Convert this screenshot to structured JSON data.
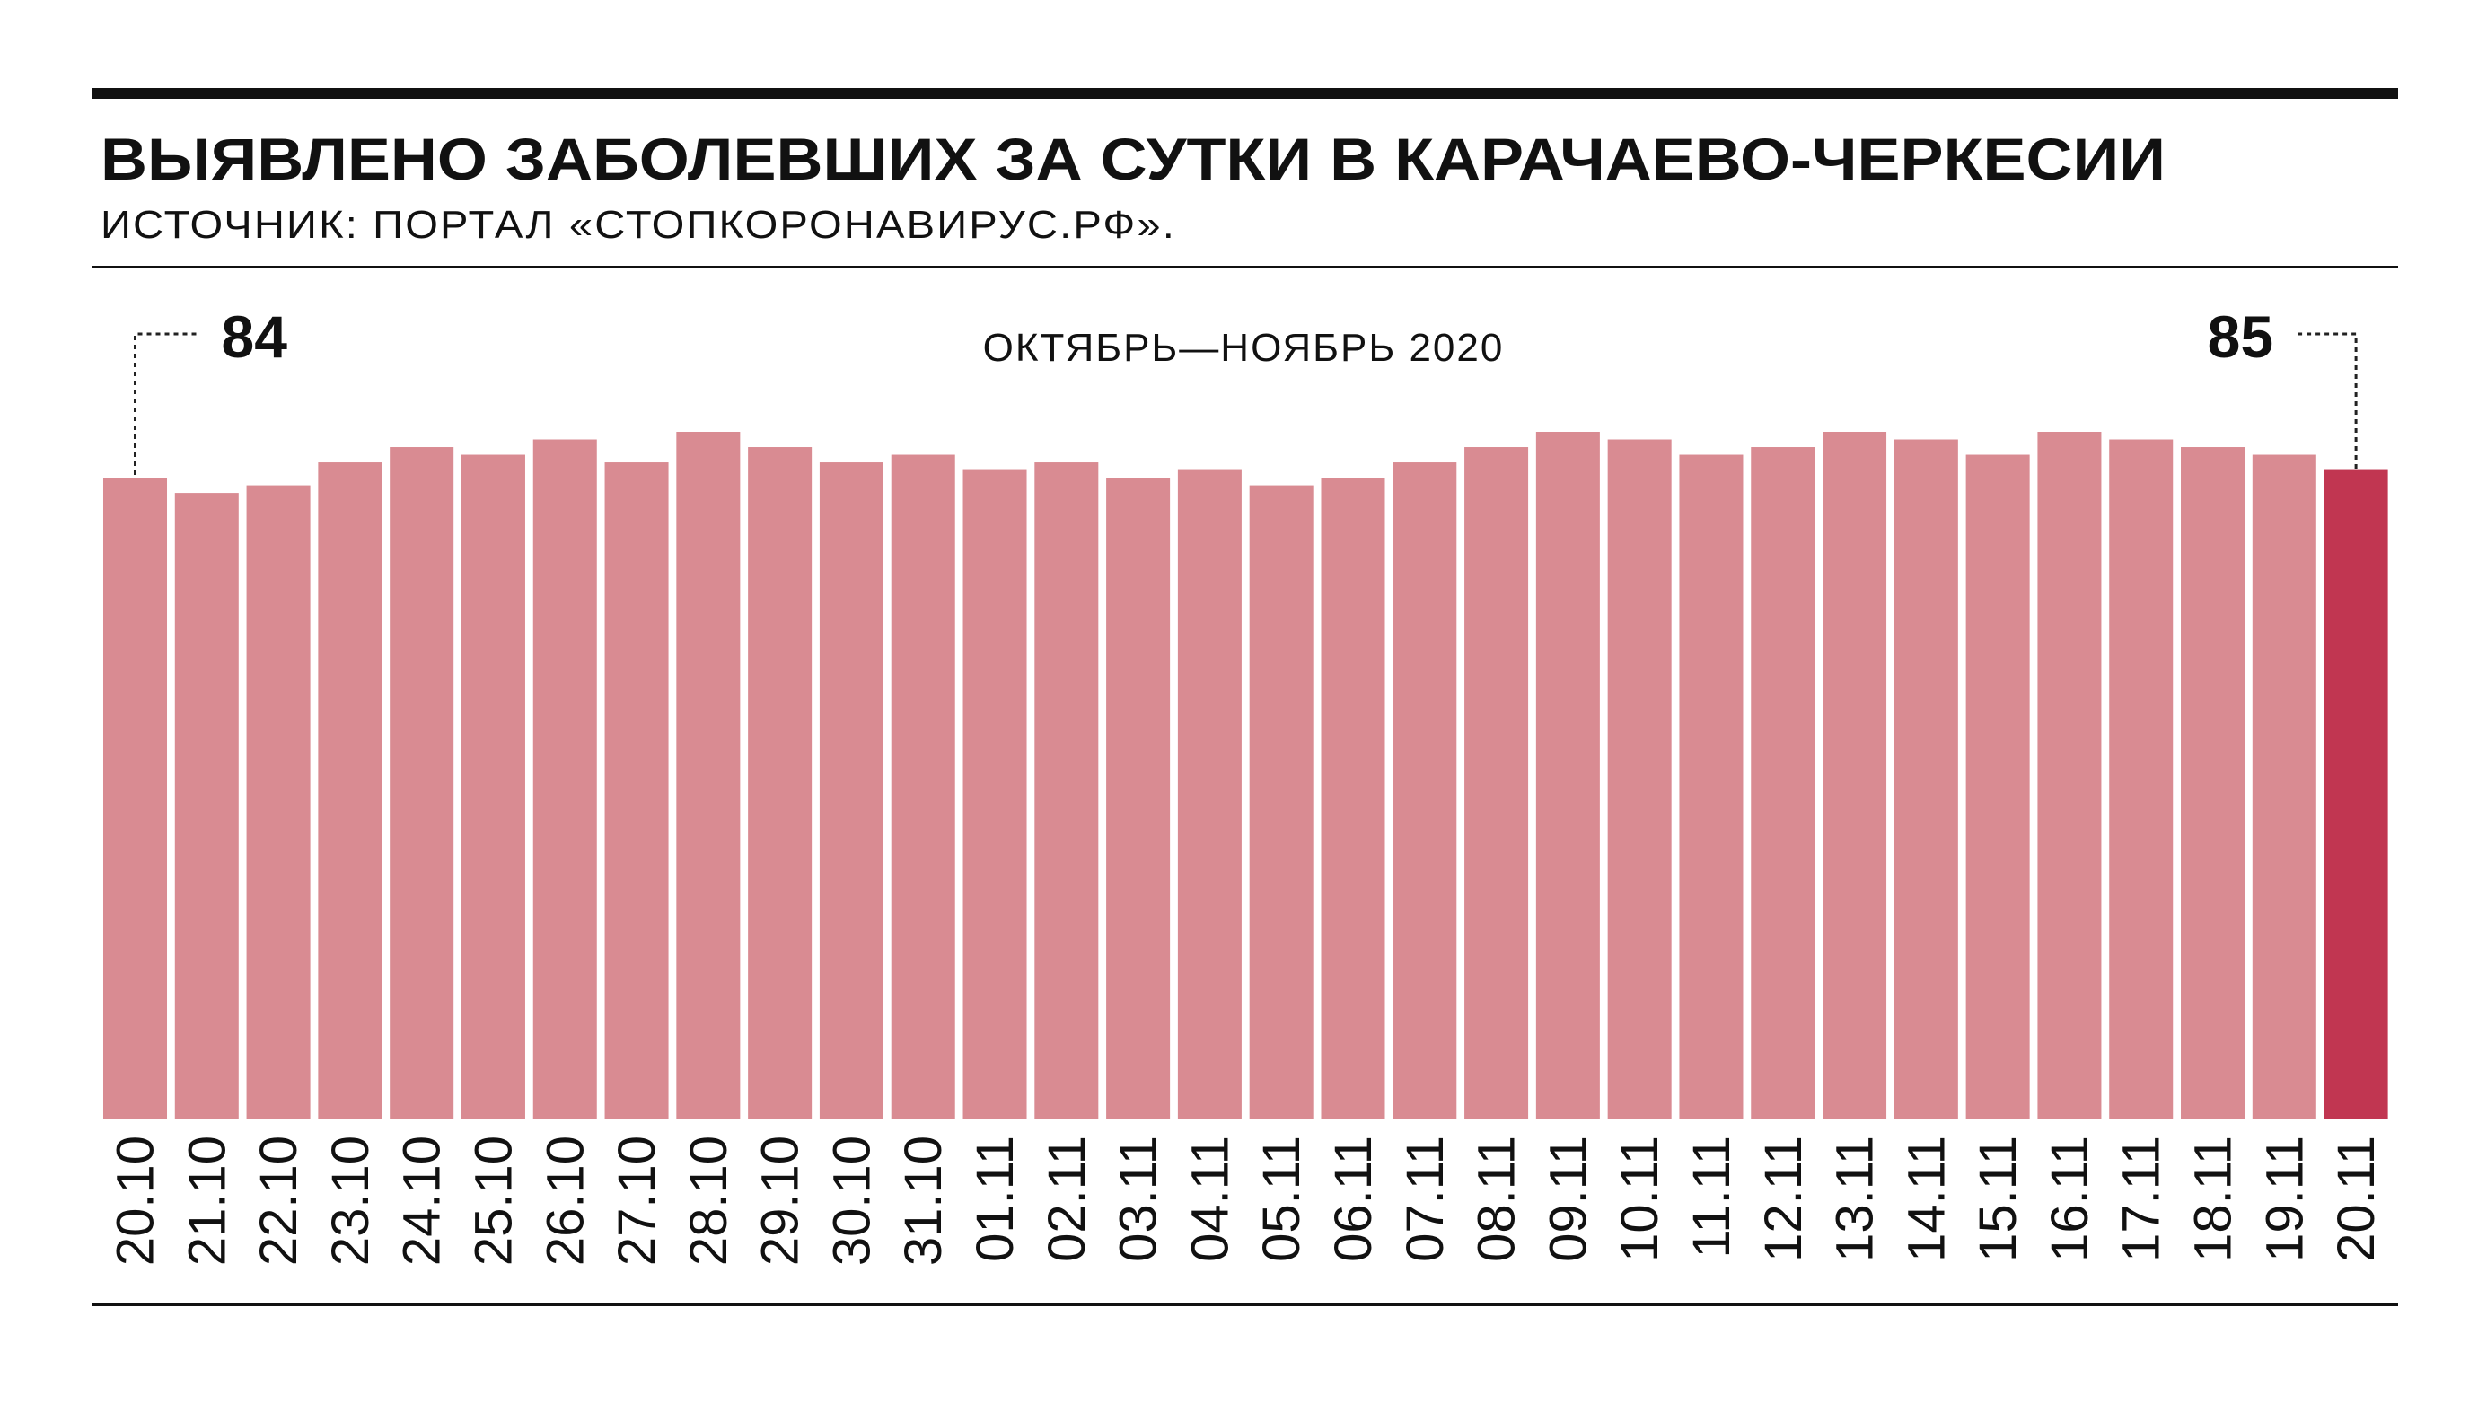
{
  "chart_data": {
    "type": "bar",
    "title": {
      "text": "ВЫЯВЛЕНО ЗАБОЛЕВШИХ ЗА СУТКИ В",
      "emphasis": "КАРАЧАЕВО-ЧЕРКЕСИИ"
    },
    "source": "ИСТОЧНИК: ПОРТАЛ «СТОПКОРОНАВИРУС.РФ».",
    "period": "ОКТЯБРЬ—НОЯБРЬ 2020",
    "categories": [
      "20.10",
      "21.10",
      "22.10",
      "23.10",
      "24.10",
      "25.10",
      "26.10",
      "27.10",
      "28.10",
      "29.10",
      "30.10",
      "31.10",
      "01.11",
      "02.11",
      "03.11",
      "04.11",
      "05.11",
      "06.11",
      "07.11",
      "08.11",
      "09.11",
      "10.11",
      "11.11",
      "12.11",
      "13.11",
      "14.11",
      "15.11",
      "16.11",
      "17.11",
      "18.11",
      "19.11",
      "20.11"
    ],
    "values": [
      84,
      82,
      83,
      86,
      88,
      87,
      89,
      86,
      90,
      88,
      86,
      87,
      85,
      86,
      84,
      85,
      83,
      84,
      86,
      88,
      90,
      89,
      87,
      88,
      90,
      89,
      87,
      90,
      89,
      88,
      87,
      85
    ],
    "colors": [
      "#d98b92",
      "#d98b92",
      "#d98b92",
      "#d98b92",
      "#d98b92",
      "#d98b92",
      "#d98b92",
      "#d98b92",
      "#d98b92",
      "#d98b92",
      "#d98b92",
      "#d98b92",
      "#d98b92",
      "#d98b92",
      "#d98b92",
      "#d98b92",
      "#d98b92",
      "#d98b92",
      "#d98b92",
      "#d98b92",
      "#d98b92",
      "#d98b92",
      "#d98b92",
      "#d98b92",
      "#d98b92",
      "#d98b92",
      "#d98b92",
      "#d98b92",
      "#d98b92",
      "#d98b92",
      "#d98b92",
      "#c13651"
    ],
    "ylim": [
      0,
      90
    ]
  }
}
